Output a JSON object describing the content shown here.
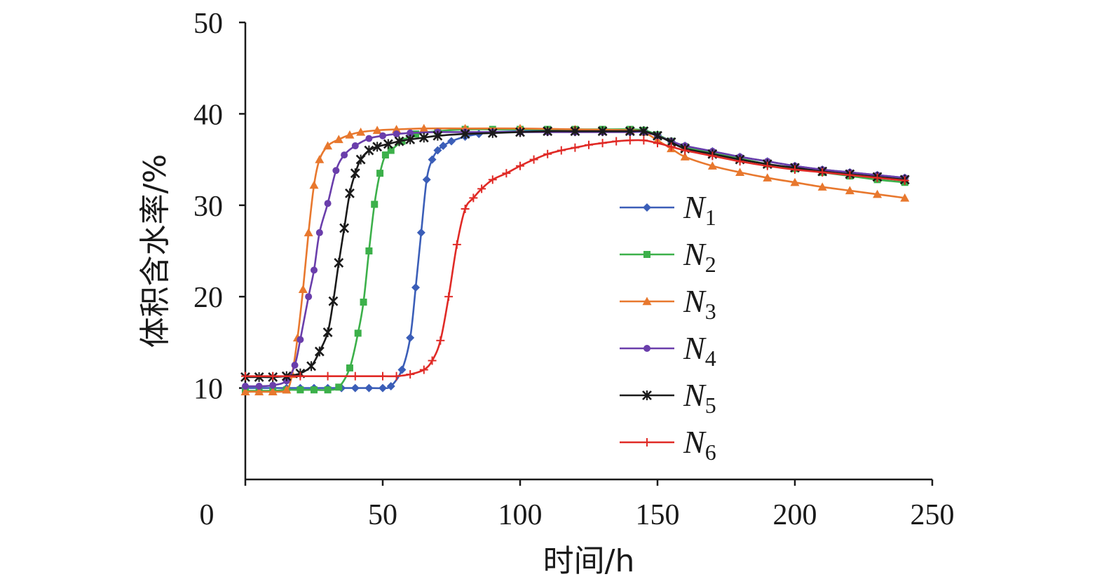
{
  "chart_data": {
    "type": "line",
    "title": "",
    "xlabel": "时间/h",
    "ylabel": "体积含水率/%",
    "xlim": [
      0,
      250
    ],
    "ylim": [
      0,
      50
    ],
    "xticks": [
      0,
      50,
      100,
      150,
      200,
      250
    ],
    "yticks": [
      10,
      20,
      30,
      40,
      50
    ],
    "grid": false,
    "legend_position": "center-right",
    "series": [
      {
        "name": "N",
        "subscript": "1",
        "color": "#3b5eb8",
        "marker": "diamond",
        "x": [
          0,
          5,
          10,
          15,
          20,
          25,
          30,
          35,
          40,
          45,
          50,
          53,
          57,
          60,
          62,
          64,
          66,
          68,
          70,
          72,
          75,
          80,
          85,
          90,
          100,
          110,
          120,
          130,
          140,
          145,
          150,
          155,
          160,
          170,
          180,
          190,
          200,
          210,
          220,
          230,
          240
        ],
        "y": [
          10.0,
          10.0,
          10.0,
          10.0,
          10.0,
          10.0,
          10.0,
          10.0,
          10.0,
          10.0,
          10.0,
          10.2,
          12.0,
          15.5,
          21.0,
          27.0,
          32.8,
          35.0,
          36.0,
          36.5,
          37.0,
          37.5,
          37.8,
          38.0,
          38.1,
          38.2,
          38.2,
          38.2,
          38.2,
          38.2,
          37.7,
          37.0,
          36.5,
          35.9,
          35.3,
          34.8,
          34.3,
          33.9,
          33.6,
          33.3,
          33.0
        ]
      },
      {
        "name": "N",
        "subscript": "2",
        "color": "#3cb04a",
        "marker": "square",
        "x": [
          0,
          5,
          10,
          15,
          20,
          25,
          30,
          34,
          38,
          41,
          43,
          45,
          47,
          49,
          51,
          53,
          57,
          62,
          70,
          80,
          90,
          100,
          110,
          120,
          130,
          140,
          145,
          150,
          155,
          160,
          170,
          180,
          190,
          200,
          210,
          220,
          230,
          240
        ],
        "y": [
          9.7,
          9.7,
          9.7,
          9.8,
          9.8,
          9.8,
          9.8,
          10.1,
          12.2,
          16.0,
          19.4,
          25.0,
          30.1,
          33.5,
          35.5,
          36.0,
          37.0,
          37.8,
          38.1,
          38.3,
          38.3,
          38.3,
          38.3,
          38.3,
          38.3,
          38.3,
          38.2,
          37.7,
          37.0,
          36.4,
          35.7,
          35.1,
          34.5,
          34.0,
          33.6,
          33.2,
          32.8,
          32.5
        ]
      },
      {
        "name": "N",
        "subscript": "3",
        "color": "#e8782e",
        "marker": "triangle",
        "x": [
          0,
          5,
          10,
          15,
          17,
          19,
          21,
          23,
          25,
          27,
          30,
          34,
          38,
          42,
          48,
          55,
          65,
          80,
          100,
          120,
          140,
          145,
          150,
          155,
          160,
          170,
          180,
          190,
          200,
          210,
          220,
          230,
          240
        ],
        "y": [
          9.6,
          9.6,
          9.6,
          9.8,
          11.5,
          15.5,
          20.8,
          27.0,
          32.2,
          35.0,
          36.5,
          37.2,
          37.7,
          38.0,
          38.2,
          38.3,
          38.4,
          38.4,
          38.4,
          38.3,
          38.2,
          38.0,
          37.1,
          36.2,
          35.3,
          34.3,
          33.6,
          33.0,
          32.5,
          32.0,
          31.6,
          31.2,
          30.8
        ]
      },
      {
        "name": "N",
        "subscript": "4",
        "color": "#6a3eab",
        "marker": "circle",
        "x": [
          0,
          5,
          10,
          15,
          18,
          20,
          23,
          25,
          27,
          30,
          33,
          36,
          40,
          45,
          50,
          55,
          60,
          70,
          80,
          90,
          100,
          110,
          120,
          130,
          140,
          145,
          150,
          155,
          160,
          170,
          180,
          190,
          200,
          210,
          220,
          230,
          240
        ],
        "y": [
          10.2,
          10.2,
          10.3,
          10.8,
          12.5,
          15.3,
          20.0,
          22.9,
          27.0,
          30.2,
          33.8,
          35.5,
          36.5,
          37.3,
          37.6,
          37.8,
          37.9,
          38.0,
          38.0,
          38.0,
          38.0,
          38.0,
          38.0,
          38.0,
          38.0,
          38.0,
          37.6,
          37.0,
          36.5,
          35.9,
          35.3,
          34.8,
          34.3,
          33.9,
          33.6,
          33.3,
          33.0
        ]
      },
      {
        "name": "N",
        "subscript": "5",
        "color": "#1a1a1a",
        "marker": "star",
        "x": [
          0,
          5,
          10,
          15,
          20,
          24,
          27,
          30,
          32,
          34,
          36,
          38,
          40,
          42,
          45,
          48,
          52,
          56,
          60,
          65,
          70,
          80,
          90,
          100,
          110,
          120,
          130,
          140,
          145,
          150,
          155,
          160,
          170,
          180,
          190,
          200,
          210,
          220,
          230,
          240
        ],
        "y": [
          11.2,
          11.2,
          11.2,
          11.3,
          11.6,
          12.4,
          14.0,
          16.1,
          19.5,
          23.7,
          27.5,
          31.3,
          33.5,
          35.0,
          36.0,
          36.4,
          36.7,
          37.0,
          37.2,
          37.4,
          37.6,
          37.8,
          37.9,
          38.0,
          38.1,
          38.1,
          38.1,
          38.1,
          38.1,
          37.6,
          36.9,
          36.2,
          35.6,
          35.0,
          34.5,
          34.1,
          33.7,
          33.4,
          33.1,
          32.8
        ]
      },
      {
        "name": "N",
        "subscript": "6",
        "color": "#e02a26",
        "marker": "plus",
        "x": [
          0,
          10,
          20,
          30,
          40,
          50,
          55,
          60,
          65,
          68,
          71,
          74,
          77,
          80,
          83,
          86,
          90,
          95,
          100,
          105,
          110,
          115,
          120,
          125,
          130,
          135,
          140,
          145,
          150,
          155,
          160,
          170,
          180,
          190,
          200,
          210,
          220,
          230,
          240
        ],
        "y": [
          11.3,
          11.3,
          11.3,
          11.3,
          11.3,
          11.3,
          11.3,
          11.5,
          12.0,
          13.0,
          15.2,
          20.0,
          25.7,
          29.6,
          30.8,
          31.8,
          32.8,
          33.5,
          34.3,
          35.0,
          35.6,
          36.0,
          36.3,
          36.6,
          36.8,
          37.0,
          37.1,
          37.1,
          36.8,
          36.4,
          36.0,
          35.4,
          34.8,
          34.3,
          33.9,
          33.6,
          33.3,
          33.0,
          32.7
        ]
      }
    ]
  }
}
